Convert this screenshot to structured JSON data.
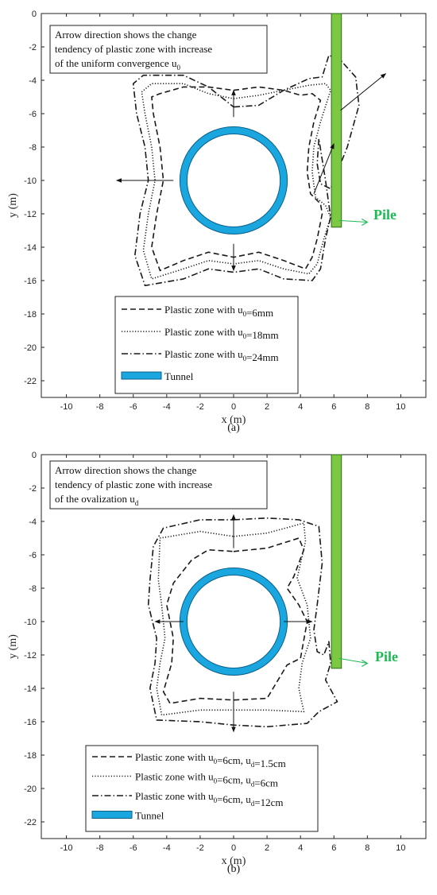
{
  "colors": {
    "tunnel": "#1aa7e0",
    "tunnel_edge": "#0b5f88",
    "pile": "#7cc842",
    "pile_edge": "#2e6a18",
    "pile_label": "#1db954",
    "curve": "#1a1a1a"
  },
  "chart_data": [
    {
      "type": "line",
      "panel": "a",
      "caption": "(a)",
      "xlabel": "x (m)",
      "ylabel": "y (m)",
      "xlim": [
        -11.5,
        11.5
      ],
      "ylim": [
        -23,
        0
      ],
      "xticks": [
        -10,
        -8,
        -6,
        -4,
        -2,
        0,
        2,
        4,
        6,
        8,
        10
      ],
      "yticks": [
        0,
        -2,
        -4,
        -6,
        -8,
        -10,
        -12,
        -14,
        -16,
        -18,
        -20,
        -22
      ],
      "annotation": [
        "Arrow direction shows the change",
        "tendency of plastic zone with increase",
        "of the uniform convergence u0"
      ],
      "pile_label": "Pile",
      "tunnel": {
        "center": [
          0,
          -10
        ],
        "radius": 3
      },
      "pile": {
        "x": [
          5.85,
          6.45
        ],
        "y": [
          0,
          -12.8
        ]
      },
      "legend": [
        {
          "label": "Plastic zone with u0=6mm",
          "style": "dashed"
        },
        {
          "label": "Plastic zone with u0=18mm",
          "style": "dotted"
        },
        {
          "label": "Plastic zone with u0=24mm",
          "style": "dashdot"
        },
        {
          "label": "Tunnel",
          "style": "tunnel"
        }
      ],
      "series": [
        {
          "name": "Plastic zone with u0=6mm",
          "style": "dashed",
          "x": [
            0,
            1.5,
            3,
            4,
            4.7,
            5.2,
            4.8,
            4.5,
            4.4,
            4.6,
            5.2,
            5.3,
            5.0,
            4.7,
            4.3,
            3,
            1.5,
            0,
            -1.5,
            -3,
            -4.4,
            -4.9,
            -4.6,
            -4.2,
            -4.4,
            -4.8,
            -4.9,
            -4.4,
            -3,
            -1.5,
            0
          ],
          "y": [
            -4.6,
            -4.4,
            -4.6,
            -4.9,
            -4.8,
            -5.2,
            -6.5,
            -8,
            -9.5,
            -10.8,
            -11.4,
            -12,
            -13.5,
            -14.6,
            -15.3,
            -14.8,
            -14.3,
            -14.6,
            -14.3,
            -14.8,
            -15.4,
            -14.0,
            -12,
            -10,
            -8,
            -6,
            -5.0,
            -4.8,
            -4.4,
            -4.4,
            -4.6
          ]
        },
        {
          "name": "Plastic zone with u0=18mm",
          "style": "dotted",
          "x": [
            0,
            1.5,
            3,
            4.5,
            5.5,
            5.8,
            5.2,
            4.8,
            4.7,
            4.9,
            5.5,
            5.8,
            5.4,
            5,
            4.5,
            3,
            1.5,
            0,
            -1.5,
            -3,
            -4.9,
            -5.4,
            -5.1,
            -4.7,
            -4.9,
            -5.3,
            -5.5,
            -4.9,
            -3,
            -1.5,
            0
          ],
          "y": [
            -5.1,
            -4.9,
            -4.6,
            -4.3,
            -4.2,
            -4.6,
            -6.5,
            -8,
            -9.5,
            -11,
            -11.5,
            -12.2,
            -13.5,
            -15,
            -15.6,
            -15.3,
            -14.8,
            -15.0,
            -14.8,
            -15.3,
            -15.9,
            -14.2,
            -12,
            -10,
            -8,
            -6,
            -4.7,
            -4.2,
            -4.2,
            -4.8,
            -5.1
          ]
        },
        {
          "name": "Plastic zone with u0=24mm",
          "style": "dashdot",
          "x": [
            0,
            1.5,
            3,
            4.5,
            5.3,
            5.7,
            6.4,
            7.3,
            7.5,
            6.8,
            6.2,
            5.8,
            5.2,
            5.0,
            5.1,
            5.5,
            5.8,
            5.5,
            5.2,
            4.7,
            3,
            1.5,
            0,
            -1.5,
            -3,
            -5.3,
            -5.9,
            -5.6,
            -5.1,
            -5.3,
            -5.8,
            -6.0,
            -5.4,
            -3,
            -1.5,
            0
          ],
          "y": [
            -5.6,
            -5.5,
            -4.6,
            -3.9,
            -3.8,
            -2.5,
            -2.8,
            -3.8,
            -5.5,
            -8,
            -9.5,
            -10.5,
            -10.2,
            -9,
            -7.5,
            -10,
            -12.2,
            -13.5,
            -15.3,
            -16,
            -15.9,
            -15.3,
            -15.5,
            -15.3,
            -15.9,
            -16.3,
            -14.5,
            -12,
            -10,
            -8,
            -6,
            -4.2,
            -3.7,
            -3.7,
            -4.4,
            -5.6
          ]
        }
      ],
      "arrows": [
        {
          "from": [
            0,
            -6.2
          ],
          "to": [
            0,
            -4.6
          ]
        },
        {
          "from": [
            0,
            -13.8
          ],
          "to": [
            0,
            -15.4
          ]
        },
        {
          "from": [
            -3.6,
            -10
          ],
          "to": [
            -7,
            -10
          ]
        },
        {
          "from": [
            4.8,
            -10.8
          ],
          "to": [
            6,
            -7.8
          ]
        },
        {
          "from": [
            6.4,
            -5.8
          ],
          "to": [
            9.1,
            -3.6
          ]
        },
        {
          "from": [
            6.3,
            -12.4
          ],
          "to": [
            8.0,
            -12.5
          ]
        }
      ]
    },
    {
      "type": "line",
      "panel": "b",
      "caption": "(b)",
      "xlabel": "x (m)",
      "ylabel": "y (m)",
      "xlim": [
        -11.5,
        11.5
      ],
      "ylim": [
        -23,
        0
      ],
      "xticks": [
        -10,
        -8,
        -6,
        -4,
        -2,
        0,
        2,
        4,
        6,
        8,
        10
      ],
      "yticks": [
        0,
        -2,
        -4,
        -6,
        -8,
        -10,
        -12,
        -14,
        -16,
        -18,
        -20,
        -22
      ],
      "annotation": [
        "Arrow direction shows the change",
        "tendency of plastic zone with increase",
        "of the ovalization ud"
      ],
      "pile_label": "Pile",
      "tunnel": {
        "center": [
          0,
          -10
        ],
        "radius": 3
      },
      "pile": {
        "x": [
          5.85,
          6.45
        ],
        "y": [
          0,
          -12.8
        ]
      },
      "legend": [
        {
          "label": "Plastic zone with u0=6cm, ud=1.5cm",
          "style": "dashed"
        },
        {
          "label": "Plastic zone with u0=6cm, ud=6cm",
          "style": "dotted"
        },
        {
          "label": "Plastic zone with u0=6cm, ud=12cm",
          "style": "dashdot"
        },
        {
          "label": "Tunnel",
          "style": "tunnel"
        }
      ],
      "series": [
        {
          "name": "Plastic zone with u0=6cm, ud=1.5cm",
          "style": "dashed",
          "x": [
            0,
            2,
            3.9,
            4.2,
            3.6,
            3.2,
            3.9,
            4.4,
            4.0,
            3.2,
            2,
            0,
            -2,
            -3.8,
            -4.2,
            -3.7,
            -3.6,
            -4.0,
            -3.6,
            -2.5,
            -1.5,
            0
          ],
          "y": [
            -5.8,
            -5.6,
            -5.0,
            -5.7,
            -7.3,
            -8.0,
            -9.0,
            -10,
            -12.2,
            -12.6,
            -14.6,
            -14.7,
            -14.6,
            -14.9,
            -14.2,
            -12.5,
            -11,
            -9,
            -7.7,
            -6.3,
            -5.7,
            -5.8
          ]
        },
        {
          "name": "Plastic zone with u0=6cm, ud=6cm",
          "style": "dotted",
          "x": [
            0,
            2,
            4.2,
            4.3,
            3.8,
            4.4,
            4.6,
            4.1,
            3.9,
            4.2,
            2,
            0,
            -2,
            -4.3,
            -4.6,
            -4.4,
            -4.1,
            -4.3,
            -4.5,
            -4.4,
            -2,
            0
          ],
          "y": [
            -4.9,
            -4.7,
            -4.1,
            -5.2,
            -7.4,
            -9,
            -11,
            -12.5,
            -14.0,
            -15.4,
            -15.3,
            -15.3,
            -15.3,
            -15.6,
            -14,
            -12.5,
            -11,
            -9,
            -7.5,
            -5,
            -4.6,
            -4.9
          ]
        },
        {
          "name": "Plastic zone with u0=6cm, ud=12cm",
          "style": "dashdot",
          "x": [
            0,
            2,
            3.9,
            5.1,
            5.3,
            5.0,
            4.8,
            5.0,
            5.4,
            5.7,
            5.8,
            5.5,
            6.2,
            5.1,
            4.4,
            2,
            0,
            -2,
            -4.6,
            -5.0,
            -4.7,
            -4.6,
            -5.1,
            -5.0,
            -4.8,
            -4.2,
            -2,
            0
          ],
          "y": [
            -3.9,
            -3.8,
            -3.9,
            -4.3,
            -6.5,
            -9,
            -10.5,
            -11.8,
            -12.0,
            -11.2,
            -12.5,
            -13.5,
            -14.8,
            -15.4,
            -16.1,
            -16.3,
            -16.2,
            -16.0,
            -15.9,
            -14,
            -12.5,
            -11,
            -9,
            -7.5,
            -5.5,
            -4.4,
            -3.9,
            -3.9
          ]
        }
      ],
      "arrows": [
        {
          "from": [
            0,
            -5.6
          ],
          "to": [
            0,
            -3.6
          ]
        },
        {
          "from": [
            0,
            -14.2
          ],
          "to": [
            0,
            -16.6
          ]
        },
        {
          "from": [
            -3.0,
            -10
          ],
          "to": [
            -4.7,
            -10
          ]
        },
        {
          "from": [
            3.0,
            -10
          ],
          "to": [
            4.7,
            -10
          ]
        },
        {
          "from": [
            6.3,
            -12.2
          ],
          "to": [
            8.0,
            -12.5
          ]
        }
      ]
    }
  ]
}
